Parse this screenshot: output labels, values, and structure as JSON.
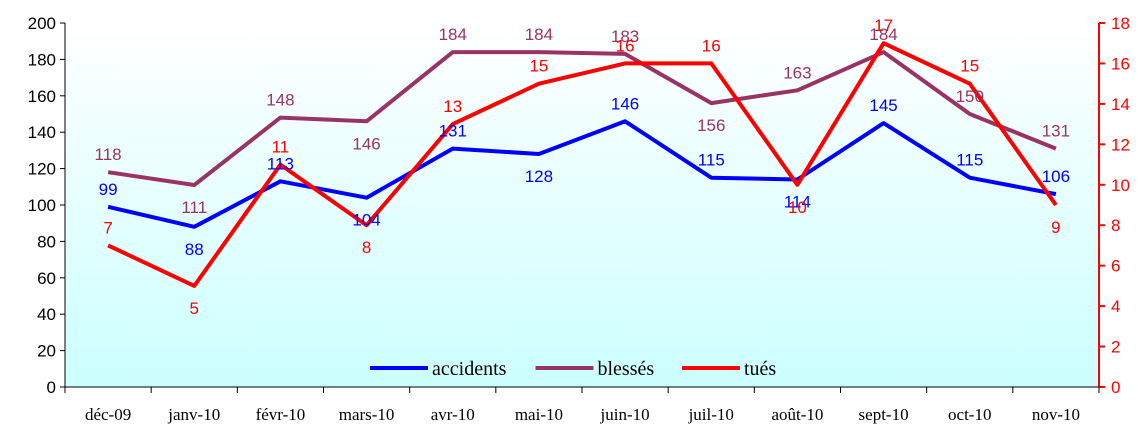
{
  "chart_data": {
    "type": "line",
    "categories": [
      "déc-09",
      "janv-10",
      "févr-10",
      "mars-10",
      "avr-10",
      "mai-10",
      "juin-10",
      "juil-10",
      "août-10",
      "sept-10",
      "oct-10",
      "nov-10"
    ],
    "series": [
      {
        "name": "accidents",
        "axis": "left",
        "color": "#0000FF",
        "values": [
          99,
          88,
          113,
          104,
          131,
          128,
          146,
          115,
          114,
          145,
          115,
          106
        ]
      },
      {
        "name": "blessés",
        "axis": "left",
        "color": "#993366",
        "values": [
          118,
          111,
          148,
          146,
          184,
          184,
          183,
          156,
          163,
          184,
          150,
          131
        ]
      },
      {
        "name": "tués",
        "axis": "right",
        "color": "#FF0000",
        "values": [
          7,
          5,
          11,
          8,
          13,
          15,
          16,
          16,
          10,
          17,
          15,
          9
        ]
      }
    ],
    "ylim": [
      0,
      200
    ],
    "yticks": [
      "0",
      "20",
      "40",
      "60",
      "80",
      "100",
      "120",
      "140",
      "160",
      "180",
      "200"
    ],
    "y2lim": [
      0,
      18
    ],
    "y2ticks": [
      "0",
      "2",
      "4",
      "6",
      "8",
      "10",
      "12",
      "14",
      "16",
      "18"
    ],
    "left_axis_color": "#000000",
    "right_axis_color": "#FF0000",
    "background_gradient": [
      "#FFFFFF",
      "#CCFFFF"
    ],
    "grid": false,
    "legend_position": "bottom-center",
    "title": "",
    "xlabel": "",
    "ylabel": ""
  }
}
